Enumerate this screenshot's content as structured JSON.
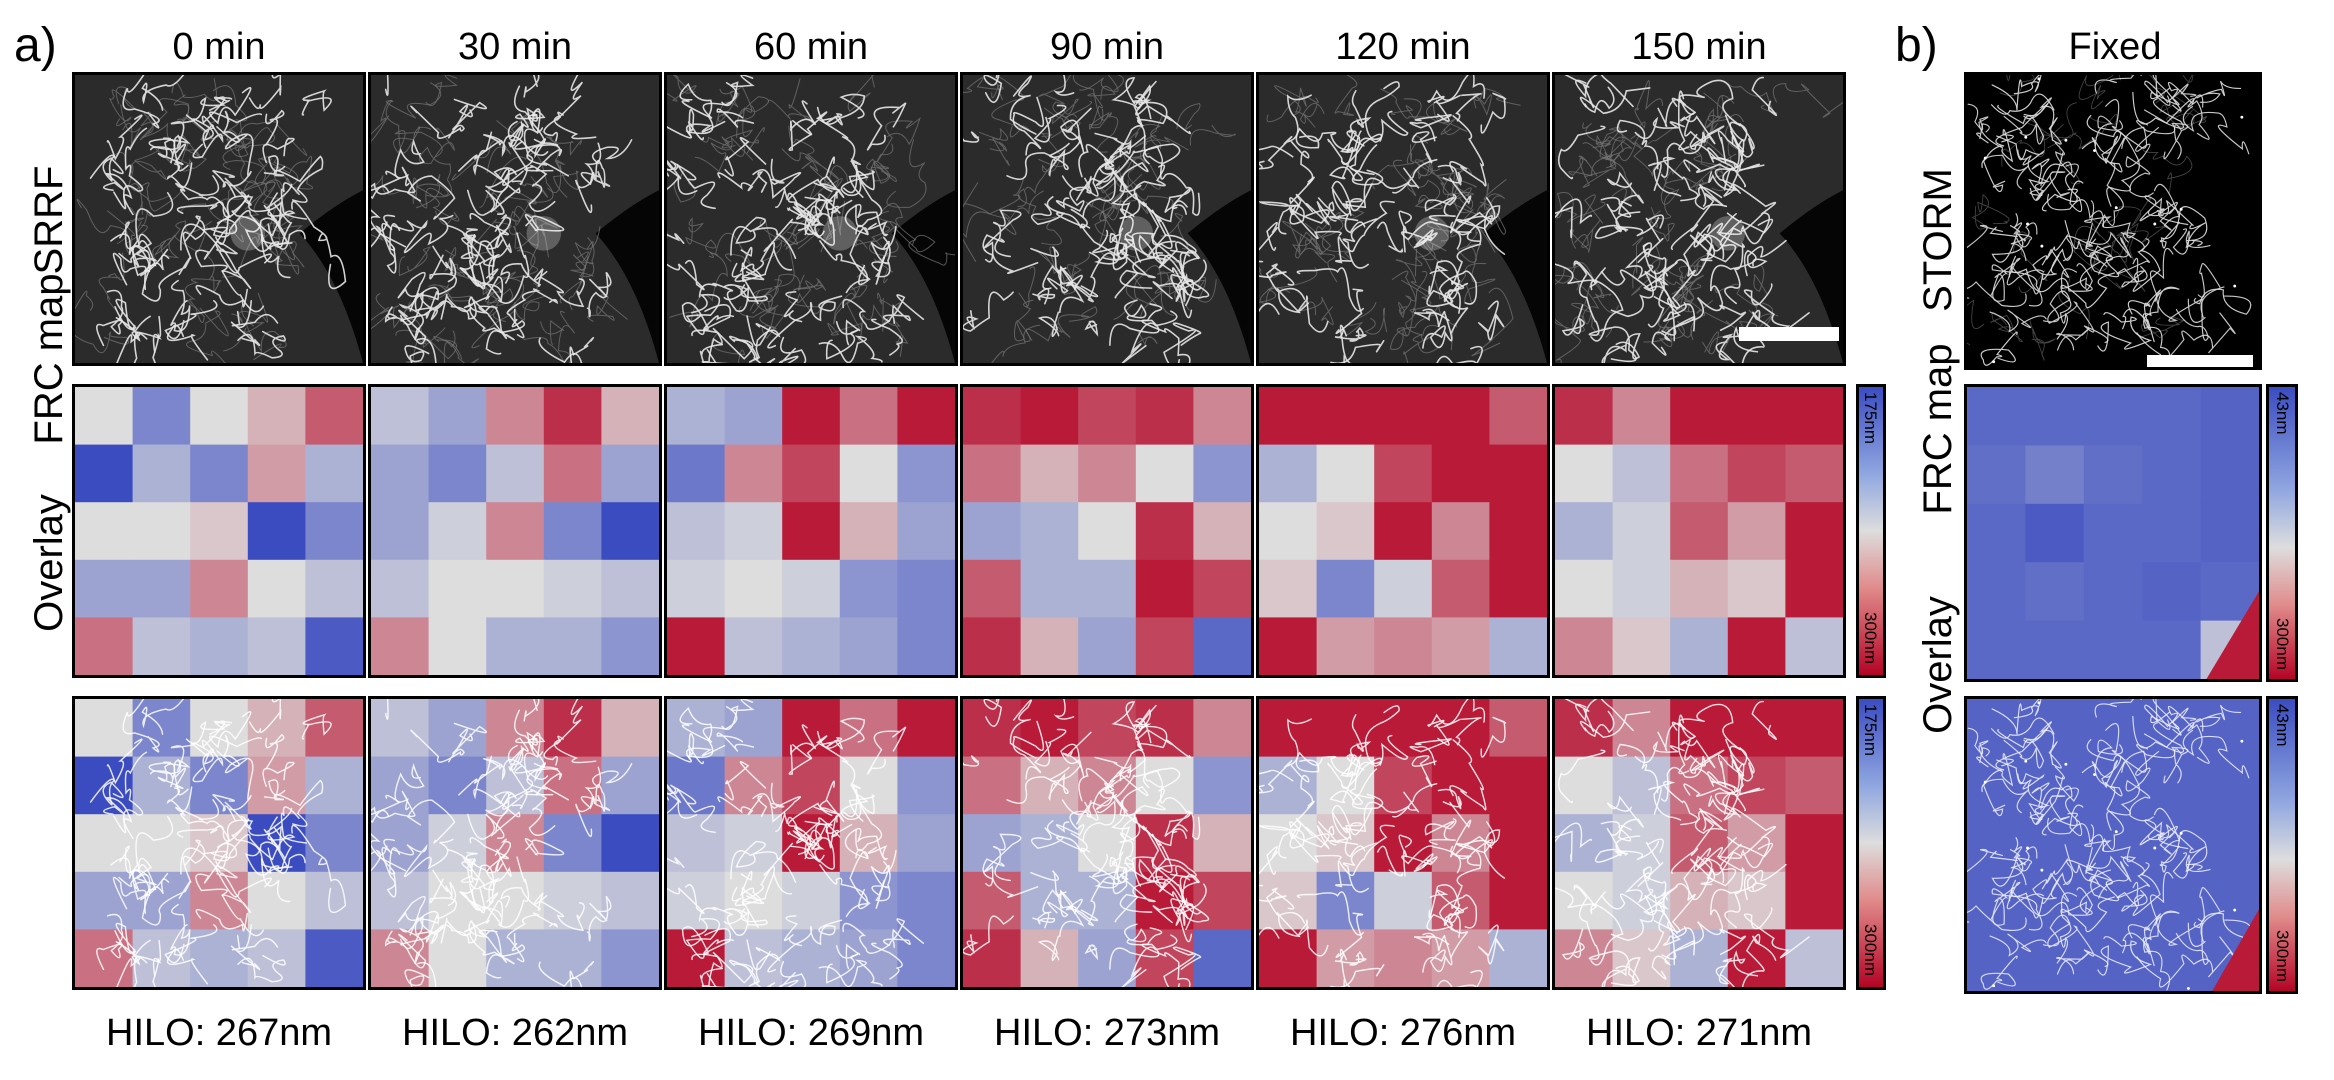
{
  "panel_a_letter": "a)",
  "panel_b_letter": "b)",
  "row_labels": {
    "srrf": "SRRF",
    "frc_map": "FRC map",
    "overlay": "Overlay",
    "storm": "STORM"
  },
  "columns": [
    {
      "time": "0 min",
      "hilo": "HILO: 267nm"
    },
    {
      "time": "30 min",
      "hilo": "HILO: 262nm"
    },
    {
      "time": "60 min",
      "hilo": "HILO: 269nm"
    },
    {
      "time": "90 min",
      "hilo": "HILO: 273nm"
    },
    {
      "time": "120 min",
      "hilo": "HILO: 276nm"
    },
    {
      "time": "150 min",
      "hilo": "HILO: 271nm"
    }
  ],
  "fixed_label": "Fixed",
  "colorbar_a": {
    "top": "175nm",
    "bottom": "300nm"
  },
  "colorbar_b": {
    "top": "43nm",
    "bottom": "300nm"
  },
  "colormap": {
    "low": "#3b4cc0",
    "mid": "#dddddd",
    "high": "#b40426"
  },
  "frc_grids": [
    [
      [
        0.5,
        0.2,
        0.5,
        0.6,
        0.8
      ],
      [
        0.0,
        0.35,
        0.2,
        0.65,
        0.35
      ],
      [
        0.5,
        0.5,
        0.55,
        0.0,
        0.2
      ],
      [
        0.3,
        0.3,
        0.7,
        0.5,
        0.4
      ],
      [
        0.75,
        0.4,
        0.35,
        0.4,
        0.05
      ]
    ],
    [
      [
        0.4,
        0.3,
        0.7,
        0.9,
        0.6
      ],
      [
        0.3,
        0.2,
        0.4,
        0.75,
        0.3
      ],
      [
        0.3,
        0.45,
        0.7,
        0.2,
        0.0
      ],
      [
        0.4,
        0.5,
        0.5,
        0.45,
        0.4
      ],
      [
        0.7,
        0.5,
        0.35,
        0.35,
        0.25
      ]
    ],
    [
      [
        0.35,
        0.3,
        0.95,
        0.75,
        0.95
      ],
      [
        0.15,
        0.7,
        0.85,
        0.5,
        0.25
      ],
      [
        0.4,
        0.45,
        0.95,
        0.6,
        0.3
      ],
      [
        0.45,
        0.5,
        0.45,
        0.25,
        0.2
      ],
      [
        0.95,
        0.4,
        0.35,
        0.3,
        0.2
      ]
    ],
    [
      [
        0.9,
        0.95,
        0.85,
        0.9,
        0.7
      ],
      [
        0.75,
        0.6,
        0.7,
        0.5,
        0.25
      ],
      [
        0.3,
        0.35,
        0.5,
        0.9,
        0.6
      ],
      [
        0.8,
        0.35,
        0.35,
        0.95,
        0.85
      ],
      [
        0.9,
        0.6,
        0.3,
        0.85,
        0.1
      ]
    ],
    [
      [
        0.95,
        0.95,
        0.95,
        0.95,
        0.8
      ],
      [
        0.35,
        0.5,
        0.85,
        0.95,
        0.95
      ],
      [
        0.5,
        0.55,
        0.95,
        0.7,
        0.95
      ],
      [
        0.55,
        0.2,
        0.45,
        0.8,
        0.95
      ],
      [
        0.95,
        0.65,
        0.7,
        0.65,
        0.35
      ]
    ],
    [
      [
        0.9,
        0.7,
        0.95,
        0.95,
        0.95
      ],
      [
        0.5,
        0.4,
        0.75,
        0.85,
        0.8
      ],
      [
        0.35,
        0.45,
        0.8,
        0.65,
        0.95
      ],
      [
        0.5,
        0.45,
        0.6,
        0.55,
        0.95
      ],
      [
        0.7,
        0.55,
        0.35,
        0.95,
        0.4
      ]
    ]
  ],
  "fixed_grid": [
    [
      0.1,
      0.1,
      0.1,
      0.1,
      0.08
    ],
    [
      0.12,
      0.18,
      0.12,
      0.1,
      0.08
    ],
    [
      0.1,
      0.05,
      0.1,
      0.1,
      0.08
    ],
    [
      0.1,
      0.12,
      0.1,
      0.08,
      0.1
    ],
    [
      0.1,
      0.1,
      0.1,
      0.1,
      0.4
    ]
  ]
}
